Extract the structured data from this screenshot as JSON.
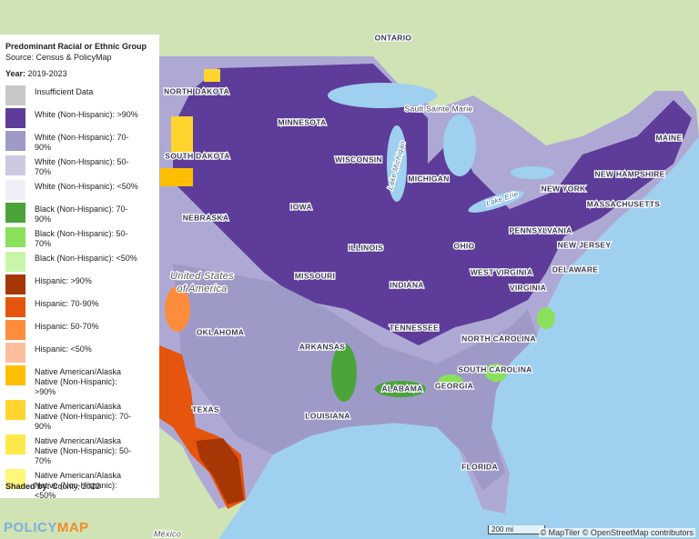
{
  "legend": {
    "title": "Predominant Racial or Ethnic Group",
    "source": "Source: Census & PolicyMap",
    "year_label": "Year:",
    "year": "2019-2023",
    "items": [
      {
        "label": "Insufficient Data",
        "color": "#c8c8c8"
      },
      {
        "label": "White (Non-Hispanic): >90%",
        "color": "#5e3c99"
      },
      {
        "label": "White (Non-Hispanic): 70-90%",
        "color": "#9e9ac8"
      },
      {
        "label": "White (Non-Hispanic): 50-70%",
        "color": "#cbc9e2"
      },
      {
        "label": "White (Non-Hispanic): <50%",
        "color": "#f0eff7"
      },
      {
        "label": "Black (Non-Hispanic): 70-90%",
        "color": "#4aa43a"
      },
      {
        "label": "Black (Non-Hispanic): 50-70%",
        "color": "#8be05c"
      },
      {
        "label": "Black (Non-Hispanic): <50%",
        "color": "#c8f5a8"
      },
      {
        "label": "Hispanic: >90%",
        "color": "#a63603"
      },
      {
        "label": "Hispanic: 70-90%",
        "color": "#e6550d"
      },
      {
        "label": "Hispanic: 50-70%",
        "color": "#fd8d3c"
      },
      {
        "label": "Hispanic: <50%",
        "color": "#fdbe9e"
      },
      {
        "label": "Native American/Alaska Native (Non-Hispanic): >90%",
        "color": "#ffbf00"
      },
      {
        "label": "Native American/Alaska Native (Non-Hispanic): 70-90%",
        "color": "#ffd42e"
      },
      {
        "label": "Native American/Alaska Native (Non-Hispanic): 50-70%",
        "color": "#ffe84a"
      },
      {
        "label": "Native American/Alaska Native (Non-Hispanic): <50%",
        "color": "#fff77a"
      }
    ],
    "shaded_by_label": "Shaded by:",
    "shaded_by": "County, 2022"
  },
  "map": {
    "labels": [
      "ONTARIO",
      "NORTH DAKOTA",
      "MINNESOTA",
      "Sault Sainte Marie",
      "MAINE",
      "SOUTH DAKOTA",
      "WISCONSIN",
      "MICHIGAN",
      "NEW HAMPSHIRE",
      "NEW YORK",
      "Lake Michigan",
      "Lake Erie",
      "MASSACHUSETTS",
      "IOWA",
      "NEBRASKA",
      "PENNSYLVANIA",
      "ILLINOIS",
      "OHIO",
      "NEW JERSEY",
      "DELAWARE",
      "United States",
      "of America",
      "MISSOURI",
      "WEST VIRGINIA",
      "INDIANA",
      "VIRGINIA",
      "OKLAHOMA",
      "TENNESSEE",
      "NORTH CAROLINA",
      "ARKANSAS",
      "SOUTH CAROLINA",
      "ALABAMA",
      "GEORGIA",
      "TEXAS",
      "LOUISIANA",
      "FLORIDA",
      "México"
    ],
    "scale": "200 mi",
    "attribution": "© MapTiler © OpenStreetMap contributors",
    "logo_policy": "POLICY",
    "logo_map": "MAP"
  }
}
